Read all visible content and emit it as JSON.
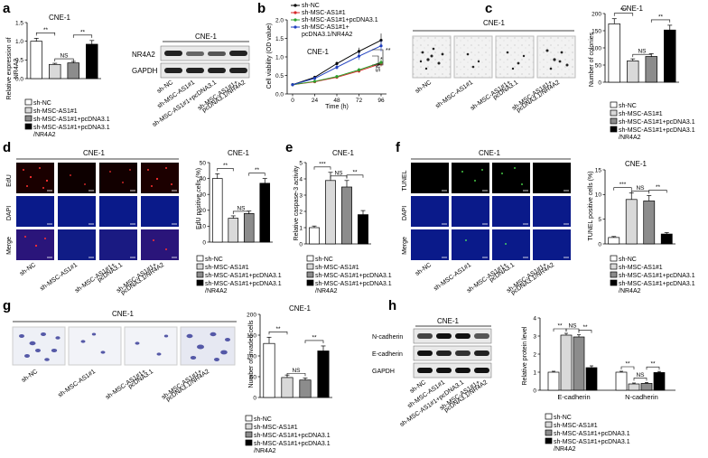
{
  "panel_labels": [
    "a",
    "b",
    "c",
    "d",
    "e",
    "f",
    "g",
    "h"
  ],
  "cell_line": "CNE-1",
  "legend": {
    "sh_nc": "sh-NC",
    "sh_msc": "sh-MSC-AS1#1",
    "sh_msc_pc": "sh-MSC-AS1#1+pcDNA3.1",
    "sh_msc_nr": "sh-MSC-AS1#1+pcDNA3.1",
    "sh_msc_nr2": "/NR4A2"
  },
  "xlabels": {
    "nc": "sh-NC",
    "msc": "sh-MSC-AS1#1",
    "pc": "sh-MSC-AS1#1+pcDNA3.1",
    "pc_a": "sh-MSC-AS1#1+",
    "pc_b": "pcDNA3.1",
    "nr_a": "sh-MSC-AS1#1+",
    "nr_b": "pcDNA3.1/NR4A2"
  },
  "sig": {
    "two": "**",
    "three": "***",
    "ns": "NS",
    "one": "*"
  },
  "panel_a": {
    "ylabel1": "Relative expression of",
    "ylabel2": "NR4A2",
    "blot_rows": [
      "NR4A2",
      "GAPDH"
    ]
  },
  "panel_b": {
    "xlabel": "Time (h)",
    "ylabel": "Cell viability (OD value)",
    "legend": [
      "sh-NC",
      "sh-MSC-AS1#1",
      "sh-MSC-AS1#1+pcDNA3.1",
      "sh-MSC-AS1#1+",
      "pcDNA3.1/NR4A2"
    ]
  },
  "panel_c": {
    "ylabel": "Number of colonies"
  },
  "panel_d": {
    "ylabel": "EdU positive cells (%)",
    "rows": [
      "EdU",
      "DAPI",
      "Merge"
    ]
  },
  "panel_e": {
    "ylabel": "Relative caspase-3 activity"
  },
  "panel_f": {
    "ylabel": "TUNEL positive cells (%)",
    "rows": [
      "TUNEL",
      "DAPI",
      "Merge"
    ]
  },
  "panel_g": {
    "ylabel": "Number of invaded cells"
  },
  "panel_h": {
    "ylabel": "Relative protein level",
    "blot_rows": [
      "N-cadherin",
      "E-cadherin",
      "GAPDH"
    ],
    "groups": [
      "E-cadherin",
      "N-cadherin"
    ]
  },
  "colors": {
    "nc": "#ffffff",
    "msc": "#d9d9d9",
    "pc": "#8c8c8c",
    "nr": "#000000",
    "line_nc": "#000000",
    "line_msc": "#d62728",
    "line_pc": "#2ca02c",
    "line_nr": "#1f3fbf"
  },
  "chart_data": [
    {
      "panel": "a",
      "type": "bar",
      "categories": [
        "sh-NC",
        "sh-MSC-AS1#1",
        "sh-MSC-AS1#1+pcDNA3.1",
        "sh-MSC-AS1#1+pcDNA3.1/NR4A2"
      ],
      "values": [
        1.0,
        0.38,
        0.42,
        0.92
      ],
      "errors": [
        0.08,
        0.03,
        0.04,
        0.1
      ],
      "ylim": [
        0,
        1.5
      ],
      "yticks": [
        0.0,
        0.5,
        1.0,
        1.5
      ],
      "ylabel": "Relative expression of NR4A2"
    },
    {
      "panel": "b",
      "type": "line",
      "x": [
        0,
        24,
        48,
        72,
        96
      ],
      "xlabel": "Time (h)",
      "ylabel": "Cell viability (OD value)",
      "ylim": [
        0,
        2.0
      ],
      "yticks": [
        0.0,
        0.5,
        1.0,
        1.5,
        2.0
      ],
      "series": [
        {
          "name": "sh-NC",
          "values": [
            0.25,
            0.45,
            0.82,
            1.15,
            1.45
          ],
          "errors": [
            0.02,
            0.04,
            0.06,
            0.1,
            0.18
          ]
        },
        {
          "name": "sh-MSC-AS1#1",
          "values": [
            0.25,
            0.33,
            0.45,
            0.62,
            0.82
          ],
          "errors": [
            0.02,
            0.03,
            0.04,
            0.05,
            0.08
          ]
        },
        {
          "name": "sh-MSC-AS1#1+pcDNA3.1",
          "values": [
            0.25,
            0.34,
            0.47,
            0.65,
            0.85
          ],
          "errors": [
            0.02,
            0.03,
            0.04,
            0.05,
            0.08
          ]
        },
        {
          "name": "sh-MSC-AS1#1+pcDNA3.1/NR4A2",
          "values": [
            0.25,
            0.42,
            0.72,
            1.02,
            1.3
          ],
          "errors": [
            0.02,
            0.04,
            0.06,
            0.1,
            0.15
          ]
        }
      ]
    },
    {
      "panel": "c",
      "type": "bar",
      "categories": [
        "sh-NC",
        "sh-MSC-AS1#1",
        "sh-MSC-AS1#1+pcDNA3.1",
        "sh-MSC-AS1#1+pcDNA3.1/NR4A2"
      ],
      "values": [
        170,
        62,
        75,
        152
      ],
      "errors": [
        15,
        6,
        8,
        14
      ],
      "ylim": [
        0,
        200
      ],
      "yticks": [
        0,
        50,
        100,
        150,
        200
      ],
      "ylabel": "Number of colonies"
    },
    {
      "panel": "d",
      "type": "bar",
      "categories": [
        "sh-NC",
        "sh-MSC-AS1#1",
        "sh-MSC-AS1#1+pcDNA3.1",
        "sh-MSC-AS1#1+pcDNA3.1/NR4A2"
      ],
      "values": [
        40,
        15,
        18,
        37
      ],
      "errors": [
        3,
        1.5,
        1.5,
        3
      ],
      "ylim": [
        0,
        50
      ],
      "yticks": [
        0,
        10,
        20,
        30,
        40,
        50
      ],
      "ylabel": "EdU positive cells (%)"
    },
    {
      "panel": "e",
      "type": "bar",
      "categories": [
        "sh-NC",
        "sh-MSC-AS1#1",
        "sh-MSC-AS1#1+pcDNA3.1",
        "sh-MSC-AS1#1+pcDNA3.1/NR4A2"
      ],
      "values": [
        1.0,
        3.9,
        3.5,
        1.8
      ],
      "errors": [
        0.1,
        0.5,
        0.4,
        0.25
      ],
      "ylim": [
        0,
        5
      ],
      "yticks": [
        0,
        1,
        2,
        3,
        4,
        5
      ],
      "ylabel": "Relative caspase-3 activity"
    },
    {
      "panel": "f",
      "type": "bar",
      "categories": [
        "sh-NC",
        "sh-MSC-AS1#1",
        "sh-MSC-AS1#1+pcDNA3.1",
        "sh-MSC-AS1#1+pcDNA3.1/NR4A2"
      ],
      "values": [
        1.3,
        9.0,
        8.7,
        2.0
      ],
      "errors": [
        0.2,
        1.3,
        1.1,
        0.3
      ],
      "ylim": [
        0,
        15
      ],
      "yticks": [
        0,
        5,
        10,
        15
      ],
      "ylabel": "TUNEL positive cells (%)"
    },
    {
      "panel": "g",
      "type": "bar",
      "categories": [
        "sh-NC",
        "sh-MSC-AS1#1",
        "sh-MSC-AS1#1+pcDNA3.1",
        "sh-MSC-AS1#1+pcDNA3.1/NR4A2"
      ],
      "values": [
        130,
        48,
        42,
        112
      ],
      "errors": [
        15,
        6,
        5,
        12
      ],
      "ylim": [
        0,
        200
      ],
      "yticks": [
        0,
        50,
        100,
        150,
        200
      ],
      "ylabel": "Number of invaded cells"
    },
    {
      "panel": "h",
      "type": "bar",
      "categories": [
        "E-cadherin",
        "N-cadherin"
      ],
      "ylim": [
        0,
        4
      ],
      "yticks": [
        0,
        1,
        2,
        3,
        4
      ],
      "ylabel": "Relative protein level",
      "series": [
        {
          "name": "sh-NC",
          "values": [
            1.0,
            1.0
          ],
          "errors": [
            0.05,
            0.05
          ]
        },
        {
          "name": "sh-MSC-AS1#1",
          "values": [
            3.05,
            0.35
          ],
          "errors": [
            0.1,
            0.05
          ]
        },
        {
          "name": "sh-MSC-AS1#1+pcDNA3.1",
          "values": [
            2.95,
            0.38
          ],
          "errors": [
            0.12,
            0.05
          ]
        },
        {
          "name": "sh-MSC-AS1#1+pcDNA3.1/NR4A2",
          "values": [
            1.25,
            0.98
          ],
          "errors": [
            0.1,
            0.06
          ]
        }
      ]
    }
  ]
}
